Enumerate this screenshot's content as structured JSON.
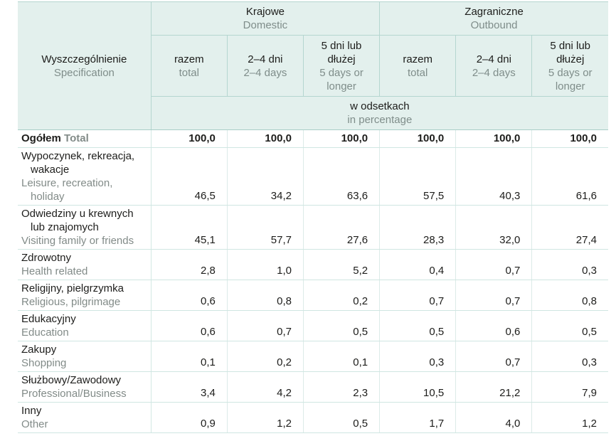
{
  "colors": {
    "header_background": "#e3f0ed",
    "header_grid_line": "#b5d6d0",
    "header_body_separator": "#a9cec8",
    "body_row_line": "#cfe6e2",
    "text_primary": "#1d1d1b",
    "text_translation_gray": "#7f8d8a"
  },
  "table": {
    "spec": {
      "pl": "Wyszczególnienie",
      "en": "Specification"
    },
    "groups": [
      {
        "pl": "Krajowe",
        "en": "Domestic"
      },
      {
        "pl": "Zagraniczne",
        "en": "Outbound"
      }
    ],
    "subcolumns": [
      {
        "pl": "razem",
        "en": "total"
      },
      {
        "pl": "2–4 dni",
        "en": "2–4 days"
      },
      {
        "pl": "5 dni lub dłużej",
        "en": "5 days or longer"
      }
    ],
    "unit": {
      "pl": "w odsetkach",
      "en": "in percentage"
    },
    "rows": [
      {
        "pl": "Ogółem",
        "en": "Total",
        "total": true,
        "values": [
          "100,0",
          "100,0",
          "100,0",
          "100,0",
          "100,0",
          "100,0"
        ]
      },
      {
        "pl": "Wypoczynek, rekreacja, wakacje",
        "en": "Leisure, recreation, holiday",
        "values": [
          "46,5",
          "34,2",
          "63,6",
          "57,5",
          "40,3",
          "61,6"
        ]
      },
      {
        "pl": "Odwiedziny u krewnych lub znajomych",
        "en": "Visiting family or friends",
        "values": [
          "45,1",
          "57,7",
          "27,6",
          "28,3",
          "32,0",
          "27,4"
        ]
      },
      {
        "pl": "Zdrowotny",
        "en": "Health related",
        "values": [
          "2,8",
          "1,0",
          "5,2",
          "0,4",
          "0,7",
          "0,3"
        ]
      },
      {
        "pl": "Religijny, pielgrzymka",
        "en": "Religious, pilgrimage",
        "values": [
          "0,6",
          "0,8",
          "0,2",
          "0,7",
          "0,7",
          "0,8"
        ]
      },
      {
        "pl": "Edukacyjny",
        "en": "Education",
        "values": [
          "0,6",
          "0,7",
          "0,5",
          "0,5",
          "0,6",
          "0,5"
        ]
      },
      {
        "pl": "Zakupy",
        "en": "Shopping",
        "values": [
          "0,1",
          "0,2",
          "0,1",
          "0,3",
          "0,7",
          "0,3"
        ]
      },
      {
        "pl": "Służbowy/Zawodowy",
        "en": "Professional/Business",
        "values": [
          "3,4",
          "4,2",
          "2,3",
          "10,5",
          "21,2",
          "7,9"
        ]
      },
      {
        "pl": "Inny",
        "en": "Other",
        "values": [
          "0,9",
          "1,2",
          "0,5",
          "1,7",
          "4,0",
          "1,2"
        ]
      }
    ]
  }
}
